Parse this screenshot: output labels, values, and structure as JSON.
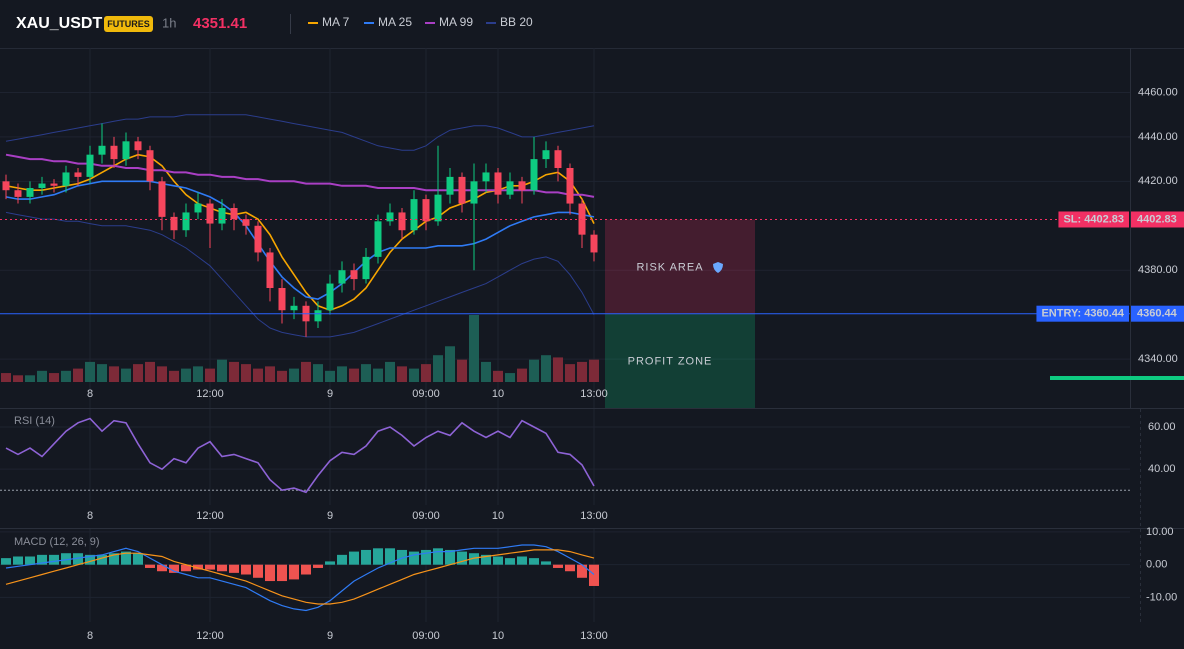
{
  "header": {
    "symbol": "XAU_USDT",
    "badge": "FUTURES",
    "interval": "1h",
    "price": 4351.41
  },
  "chart_data": [
    {
      "type": "candlestick",
      "categories": [
        null,
        null,
        null,
        null,
        null,
        null,
        null,
        "8",
        null,
        null,
        null,
        null,
        null,
        null,
        null,
        null,
        null,
        "12:00",
        null,
        null,
        null,
        null,
        null,
        null,
        null,
        null,
        null,
        "9",
        null,
        null,
        null,
        null,
        null,
        null,
        null,
        "09:00",
        null,
        null,
        null,
        null,
        null,
        "10",
        null,
        null,
        null,
        null,
        null,
        null,
        null,
        "13:00"
      ],
      "open": [
        4420,
        4416,
        4413,
        4417,
        4419,
        4418,
        4424,
        4422,
        4432,
        4436,
        4430,
        4438,
        4434,
        4420,
        4404,
        4398,
        4406,
        4410,
        4401,
        4408,
        4403,
        4400,
        4388,
        4372,
        4362,
        4364,
        4357,
        4362,
        4374,
        4380,
        4376,
        4386,
        4402,
        4406,
        4398,
        4412,
        4402,
        4414,
        4422,
        4410,
        4420,
        4424,
        4414,
        4420,
        4416,
        4430,
        4434,
        4426,
        4410,
        4396
      ],
      "high": [
        4423,
        4419,
        4420,
        4422,
        4421,
        4427,
        4426,
        4436,
        4446,
        4440,
        4442,
        4440,
        4436,
        4422,
        4406,
        4410,
        4415,
        4412,
        4412,
        4410,
        4405,
        4402,
        4390,
        4376,
        4368,
        4366,
        4366,
        4378,
        4384,
        4383,
        4390,
        4405,
        4410,
        4408,
        4416,
        4414,
        4436,
        4426,
        4424,
        4428,
        4428,
        4426,
        4424,
        4422,
        4440,
        4438,
        4436,
        4428,
        4412,
        4398
      ],
      "low": [
        4412,
        4410,
        4410,
        4414,
        4415,
        4415,
        4418,
        4419,
        4428,
        4426,
        4427,
        4430,
        4416,
        4398,
        4394,
        4395,
        4403,
        4390,
        4398,
        4398,
        4396,
        4384,
        4366,
        4356,
        4358,
        4350,
        4354,
        4360,
        4370,
        4371,
        4374,
        4383,
        4400,
        4394,
        4396,
        4398,
        4400,
        4410,
        4406,
        4380,
        4415,
        4410,
        4412,
        4410,
        4414,
        4426,
        4420,
        4405,
        4390,
        4384
      ],
      "close": [
        4416,
        4413,
        4417,
        4419,
        4418,
        4424,
        4422,
        4432,
        4436,
        4430,
        4438,
        4434,
        4420,
        4404,
        4398,
        4406,
        4410,
        4401,
        4408,
        4403,
        4400,
        4388,
        4372,
        4362,
        4364,
        4357,
        4362,
        4374,
        4380,
        4376,
        4386,
        4402,
        4406,
        4398,
        4412,
        4402,
        4414,
        4422,
        4410,
        4420,
        4424,
        4414,
        4420,
        4416,
        4430,
        4434,
        4426,
        4410,
        4396,
        4388
      ],
      "volume": [
        4,
        3,
        3,
        5,
        4,
        5,
        6,
        9,
        8,
        7,
        6,
        8,
        9,
        7,
        5,
        6,
        7,
        6,
        10,
        9,
        8,
        6,
        7,
        5,
        6,
        9,
        8,
        5,
        7,
        6,
        8,
        6,
        9,
        7,
        6,
        8,
        12,
        16,
        10,
        30,
        9,
        5,
        4,
        6,
        10,
        12,
        11,
        8,
        9,
        10
      ],
      "up_color": "#0ecb81",
      "down_color": "#f6465d",
      "volume_up_color": "#1d5e55",
      "volume_down_color": "#7d2a38",
      "series": [
        {
          "name": "MA 7",
          "color": "#f7a600",
          "values": [
            4418,
            4417,
            4416,
            4416,
            4417,
            4418,
            4419,
            4421,
            4424,
            4427,
            4430,
            4432,
            4431,
            4427,
            4420,
            4414,
            4410,
            4408,
            4406,
            4405,
            4406,
            4403,
            4396,
            4386,
            4378,
            4370,
            4364,
            4362,
            4364,
            4367,
            4372,
            4380,
            4388,
            4394,
            4398,
            4402,
            4404,
            4408,
            4410,
            4412,
            4415,
            4416,
            4418,
            4418,
            4420,
            4423,
            4424,
            4420,
            4412,
            4401
          ]
        },
        {
          "name": "MA 25",
          "color": "#2f7bf5",
          "values": [
            4413,
            4412,
            4412,
            4413,
            4414,
            4416,
            4418,
            4419,
            4420,
            4420,
            4420,
            4420,
            4420,
            4419,
            4418,
            4417,
            4415,
            4413,
            4410,
            4406,
            4400,
            4392,
            4384,
            4377,
            4372,
            4368,
            4367,
            4370,
            4374,
            4379,
            4384,
            4388,
            4390,
            4390,
            4390,
            4390,
            4391,
            4391,
            4391,
            4392,
            4394,
            4397,
            4400,
            4402,
            4404,
            4405,
            4406,
            4406,
            4405,
            4404
          ]
        },
        {
          "name": "MA 99",
          "color": "#a93fc4",
          "values": [
            4432,
            4431,
            4430,
            4430,
            4429,
            4429,
            4428,
            4428,
            4427,
            4427,
            4426,
            4426,
            4425,
            4425,
            4424,
            4424,
            4423,
            4423,
            4422,
            4422,
            4421,
            4421,
            4420,
            4420,
            4420,
            4419,
            4419,
            4419,
            4418,
            4418,
            4418,
            4417,
            4417,
            4417,
            4417,
            4416,
            4416,
            4416,
            4416,
            4416,
            4416,
            4416,
            4416,
            4416,
            4416,
            4415,
            4415,
            4414,
            4414,
            4413
          ]
        }
      ],
      "bands": {
        "name": "BB 20",
        "color": "#2b3d8c",
        "upper": [
          4438,
          4439,
          4440,
          4441,
          4442,
          4443,
          4444,
          4445,
          4446,
          4447,
          4448,
          4448,
          4449,
          4449,
          4449,
          4450,
          4450,
          4450,
          4450,
          4450,
          4450,
          4449,
          4448,
          4447,
          4446,
          4445,
          4444,
          4443,
          4442,
          4440,
          4438,
          4436,
          4435,
          4434,
          4434,
          4436,
          4440,
          4443,
          4444,
          4445,
          4445,
          4444,
          4442,
          4440,
          4440,
          4441,
          4442,
          4443,
          4444,
          4445
        ],
        "lower": [
          4406,
          4405,
          4404,
          4403,
          4403,
          4402,
          4402,
          4401,
          4400,
          4400,
          4400,
          4399,
          4398,
          4396,
          4393,
          4390,
          4386,
          4382,
          4376,
          4370,
          4364,
          4358,
          4354,
          4352,
          4351,
          4350,
          4350,
          4350,
          4351,
          4352,
          4354,
          4356,
          4358,
          4360,
          4362,
          4364,
          4366,
          4368,
          4370,
          4372,
          4374,
          4377,
          4380,
          4383,
          4385,
          4386,
          4384,
          4378,
          4370,
          4360
        ]
      },
      "ylim": [
        4318,
        4480
      ],
      "yticks": [
        {
          "value": 4460,
          "label": "4460.00"
        },
        {
          "value": 4440,
          "label": "4440.00"
        },
        {
          "value": 4420,
          "label": "4420.00"
        },
        {
          "value": 4380,
          "label": "4380.00"
        },
        {
          "value": 4340,
          "label": "4340.00"
        }
      ],
      "grid": true,
      "orders": [
        {
          "label": "SL: 4402.83",
          "value": 4402.83,
          "color": "#f23064",
          "dashed": true
        },
        {
          "label": "ENTRY: 4360.44",
          "value": 4360.44,
          "color": "#2962ff",
          "dashed": false
        }
      ],
      "zones": [
        {
          "label": "RISK AREA",
          "from": 4402.83,
          "to": 4360.44,
          "color": "#f23064"
        },
        {
          "label": "PROFIT ZONE",
          "from": 4360.44,
          "to": 4318,
          "color": "#0ecb81"
        }
      ]
    },
    {
      "type": "line",
      "title": "RSI (14)",
      "categories": [
        null,
        null,
        null,
        null,
        null,
        null,
        null,
        "8",
        null,
        null,
        null,
        null,
        null,
        null,
        null,
        null,
        null,
        "12:00",
        null,
        null,
        null,
        null,
        null,
        null,
        null,
        null,
        null,
        "9",
        null,
        null,
        null,
        null,
        null,
        null,
        null,
        "09:00",
        null,
        null,
        null,
        null,
        null,
        "10",
        null,
        null,
        null,
        null,
        null,
        null,
        null,
        "13:00"
      ],
      "values": [
        50,
        47,
        50,
        46,
        52,
        58,
        62,
        64,
        58,
        63,
        62,
        52,
        43,
        40,
        45,
        43,
        50,
        53,
        46,
        47,
        45,
        43,
        35,
        30,
        31,
        29,
        37,
        44,
        48,
        47,
        51,
        58,
        60,
        56,
        51,
        55,
        58,
        56,
        62,
        58,
        55,
        58,
        55,
        63,
        60,
        57,
        48,
        47,
        42,
        32
      ],
      "color": "#8e63d6",
      "ylim": [
        23,
        69
      ],
      "yticks": [
        {
          "value": 60,
          "label": "60.00"
        },
        {
          "value": 40,
          "label": "40.00"
        }
      ],
      "level": 30
    },
    {
      "type": "macd",
      "title": "MACD (12, 26, 9)",
      "categories": [
        null,
        null,
        null,
        null,
        null,
        null,
        null,
        "8",
        null,
        null,
        null,
        null,
        null,
        null,
        null,
        null,
        null,
        "12:00",
        null,
        null,
        null,
        null,
        null,
        null,
        null,
        null,
        null,
        "9",
        null,
        null,
        null,
        null,
        null,
        null,
        null,
        "09:00",
        null,
        null,
        null,
        null,
        null,
        "10",
        null,
        null,
        null,
        null,
        null,
        null,
        null,
        "13:00"
      ],
      "histogram": [
        2,
        2.5,
        2.5,
        3,
        3,
        3.5,
        3.5,
        3,
        3,
        3.5,
        4,
        3.5,
        -1,
        -2,
        -2.5,
        -2,
        -1.5,
        -1.5,
        -2,
        -2.5,
        -3,
        -4,
        -5,
        -5,
        -4.5,
        -3,
        -1,
        1,
        3,
        4,
        4.5,
        5,
        5,
        4.5,
        4,
        4.5,
        5,
        4.5,
        4,
        3.5,
        3,
        2.5,
        2,
        2.5,
        2,
        1,
        -1,
        -2,
        -4,
        -6.5
      ],
      "macd": [
        -1,
        -0.5,
        0,
        0.5,
        1,
        1.5,
        2,
        2.5,
        3,
        4,
        5,
        4,
        2,
        0,
        -2,
        -3,
        -4,
        -4,
        -5,
        -6,
        -7,
        -9,
        -11,
        -12.5,
        -13.5,
        -14,
        -13,
        -11,
        -8,
        -5,
        -3,
        -1,
        0.5,
        2,
        3,
        3.5,
        4,
        4,
        4.5,
        5,
        5,
        5,
        5.5,
        6,
        6,
        5.5,
        4,
        2,
        0,
        -3
      ],
      "signal": [
        -6,
        -5,
        -4,
        -3,
        -2,
        -1,
        0,
        1,
        2,
        3,
        3.5,
        3.5,
        3,
        2.5,
        1,
        0,
        -1,
        -2,
        -3,
        -4,
        -5,
        -6.5,
        -8,
        -9.5,
        -10.5,
        -11.5,
        -12,
        -12,
        -11.5,
        -10.5,
        -9,
        -7.5,
        -6,
        -4.5,
        -3,
        -2,
        -1,
        0,
        1,
        2,
        2.5,
        3,
        3.5,
        4,
        4.5,
        4.5,
        4.5,
        4,
        3,
        2
      ],
      "macd_color": "#2f7bf5",
      "signal_color": "#f7931a",
      "hist_up_color": "#26a69a",
      "hist_down_color": "#ef5350",
      "ylim": [
        -17.5,
        11.2
      ],
      "yticks": [
        {
          "value": 10,
          "label": "10.00"
        },
        {
          "value": 0,
          "label": "0.00"
        },
        {
          "value": -10,
          "label": "-10.00"
        }
      ]
    }
  ]
}
